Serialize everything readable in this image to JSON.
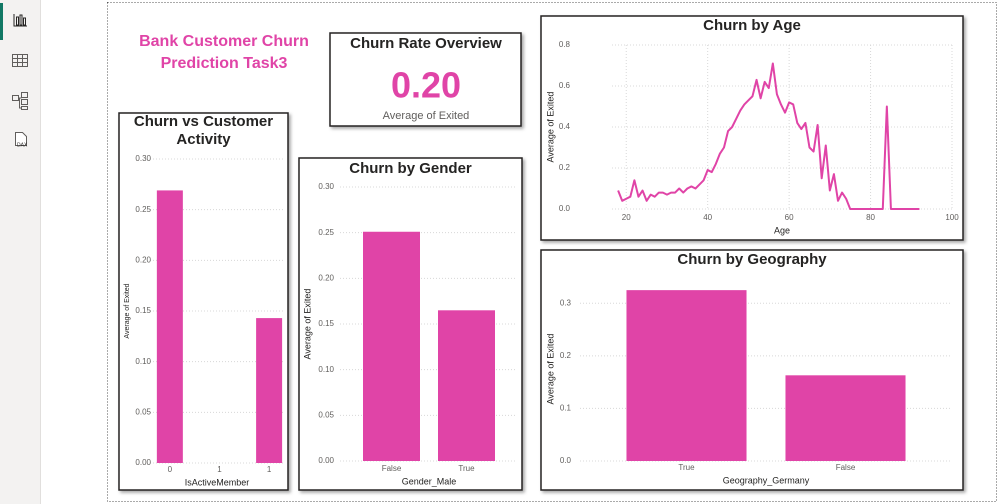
{
  "page": {
    "title": "Bank Customer Churn Prediction Task3",
    "sidebar_label": "DAX",
    "card": {
      "title": "Churn Rate Overview",
      "value": {
        "value": 0.2,
        "label": "0.20"
      },
      "caption": "Average of Exited",
      "color": "#e044a7"
    }
  },
  "chart_data": [
    {
      "type": "bar",
      "title": "Churn vs Customer Activity",
      "x": [
        0,
        1
      ],
      "values": [
        0.269,
        0.143
      ],
      "color": "#e044a7",
      "xlim": [
        -0.2,
        1.15
      ],
      "xticks": [
        0,
        {
          "value": 0.5,
          "label": "1"
        },
        1
      ],
      "x_label": "IsActiveMember",
      "y_label": "Average of Exited",
      "ylim": [
        0,
        0.3
      ],
      "yticks": [
        {
          "value": 0,
          "label": "0.00"
        },
        0.05,
        {
          "value": 0.1,
          "label": "0.10"
        },
        0.15,
        {
          "value": 0.2,
          "label": "0.20"
        },
        0.25,
        {
          "value": 0.3,
          "label": "0.30"
        }
      ],
      "grid": true
    },
    {
      "type": "bar",
      "title": "Churn by Gender",
      "categories": [
        "False",
        "True"
      ],
      "values": [
        0.251,
        0.165
      ],
      "color": "#e044a7",
      "x_label": "Gender_Male",
      "y_label": "Average of Exited",
      "ylim": [
        0,
        0.3
      ],
      "yticks": [
        {
          "value": 0,
          "label": "0.00"
        },
        0.05,
        {
          "value": 0.1,
          "label": "0.10"
        },
        0.15,
        {
          "value": 0.2,
          "label": "0.20"
        },
        0.25,
        {
          "value": 0.3,
          "label": "0.30"
        }
      ],
      "grid": true
    },
    {
      "type": "line",
      "title": "Churn by Age",
      "color": "#e044a7",
      "x_label": "Age",
      "y_label": "Average of Exited",
      "x": [
        18,
        19,
        20,
        21,
        22,
        23,
        24,
        25,
        26,
        27,
        28,
        29,
        30,
        31,
        32,
        33,
        34,
        35,
        36,
        37,
        38,
        39,
        40,
        41,
        42,
        43,
        44,
        45,
        46,
        47,
        48,
        49,
        50,
        51,
        52,
        53,
        54,
        55,
        56,
        57,
        58,
        59,
        60,
        61,
        62,
        63,
        64,
        65,
        66,
        67,
        68,
        69,
        70,
        71,
        72,
        73,
        74,
        75,
        76,
        77,
        78,
        79,
        80,
        81,
        82,
        83,
        84,
        85,
        86,
        87,
        88,
        89,
        90,
        91,
        92
      ],
      "values": [
        0.09,
        0.04,
        0.05,
        0.06,
        0.14,
        0.06,
        0.09,
        0.04,
        0.07,
        0.06,
        0.08,
        0.08,
        0.07,
        0.08,
        0.08,
        0.1,
        0.08,
        0.1,
        0.11,
        0.1,
        0.12,
        0.14,
        0.19,
        0.18,
        0.22,
        0.27,
        0.3,
        0.38,
        0.4,
        0.44,
        0.48,
        0.51,
        0.53,
        0.55,
        0.63,
        0.54,
        0.62,
        0.59,
        0.71,
        0.56,
        0.51,
        0.47,
        0.52,
        0.51,
        0.42,
        0.39,
        0.42,
        0.3,
        0.28,
        0.41,
        0.15,
        0.31,
        0.09,
        0.17,
        0.04,
        0.08,
        0.05,
        0,
        0,
        0,
        0,
        0,
        0,
        0,
        0,
        0,
        0.5,
        0,
        0,
        0,
        0,
        0,
        0,
        0,
        0
      ],
      "xlim": [
        16.5,
        100
      ],
      "xticks": [
        20,
        40,
        60,
        80,
        100
      ],
      "ylim": [
        0,
        0.8
      ],
      "yticks": [
        {
          "value": 0,
          "label": "0.0"
        },
        0.2,
        0.4,
        0.6,
        0.8
      ],
      "grid": true
    },
    {
      "type": "bar",
      "title": "Churn by Geography",
      "categories": [
        "True",
        "False"
      ],
      "values": [
        0.325,
        0.163
      ],
      "color": "#e044a7",
      "x_label": "Geography_Germany",
      "y_label": "Average of Exited",
      "ylim": [
        0,
        0.35
      ],
      "yticks": [
        {
          "value": 0,
          "label": "0.0"
        },
        0.1,
        0.2,
        0.3
      ],
      "grid": true
    }
  ]
}
